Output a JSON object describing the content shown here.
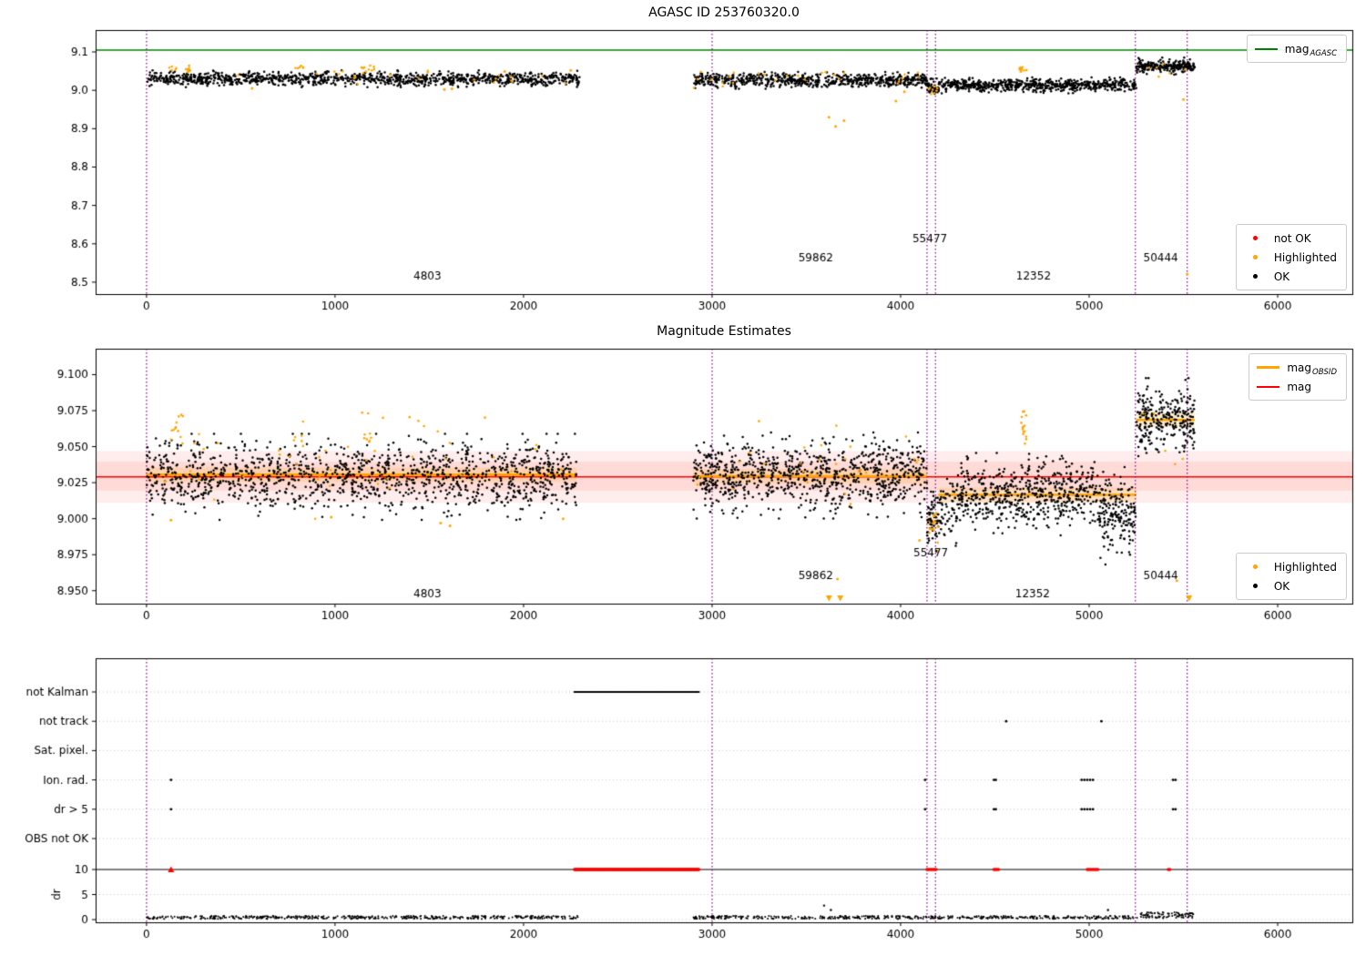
{
  "chart_data": {
    "type": "scatter",
    "colors": {
      "green": "#008000",
      "orange": "#ffa500",
      "red": "#ff0000",
      "black": "#000000",
      "purple": "#800080",
      "grid": "#c4c4c4"
    },
    "xlim": [
      -270,
      6396
    ],
    "xticks": [
      0,
      1000,
      2000,
      3000,
      4000,
      5000,
      6000
    ],
    "xtick_labels": [
      "0",
      "1000",
      "2000",
      "3000",
      "4000",
      "5000",
      "6000"
    ],
    "vlines": [
      0,
      3000,
      4140,
      4185,
      5245,
      5520
    ],
    "panel1": {
      "title": "AGASC ID 253760320.0",
      "ylim": [
        8.469,
        9.157
      ],
      "yticks": [
        9.1,
        9.0,
        8.9,
        8.8,
        8.7,
        8.6,
        8.5
      ],
      "ytick_labels": [
        "9.1",
        "9.0",
        "8.9",
        "8.8",
        "8.7",
        "8.6",
        "8.5"
      ],
      "agasc_line": {
        "y": 9.105,
        "color": "#008000"
      },
      "legend_line": {
        "main": "mag",
        "sub": "AGASC",
        "color": "#008000"
      },
      "legend_markers": [
        {
          "label": "not OK",
          "color": "#ff0000"
        },
        {
          "label": "Highlighted",
          "color": "#ffa500"
        },
        {
          "label": "OK",
          "color": "#000000"
        }
      ],
      "black_clusters": [
        {
          "x0": 0,
          "x1": 2300,
          "n": 1100,
          "y": 9.03,
          "sd": 0.0085
        },
        {
          "x0": 2900,
          "x1": 4140,
          "n": 680,
          "y": 9.026,
          "sd": 0.0085
        },
        {
          "x0": 4140,
          "x1": 4200,
          "n": 45,
          "y": 9.007,
          "sd": 0.009
        },
        {
          "x0": 4200,
          "x1": 5250,
          "n": 640,
          "y": 9.013,
          "sd": 0.008
        },
        {
          "x0": 5250,
          "x1": 5560,
          "n": 220,
          "y": 9.063,
          "sd": 0.0085
        }
      ],
      "orange_clusters": [
        {
          "x0": 120,
          "x1": 235,
          "n": 12,
          "y": 9.056,
          "sd": 0.004
        },
        {
          "x0": 780,
          "x1": 835,
          "n": 6,
          "y": 9.058,
          "sd": 0.004
        },
        {
          "x0": 1140,
          "x1": 1215,
          "n": 10,
          "y": 9.056,
          "sd": 0.005
        },
        {
          "x0": 0,
          "x1": 2300,
          "n": 22,
          "y": 9.036,
          "sd": 0.012
        },
        {
          "x0": 2900,
          "x1": 4140,
          "n": 26,
          "y": 9.033,
          "sd": 0.013
        },
        {
          "x0": 4630,
          "x1": 4668,
          "n": 10,
          "y": 9.053,
          "sd": 0.006
        },
        {
          "x0": 4150,
          "x1": 4200,
          "n": 8,
          "y": 8.997,
          "sd": 0.006
        },
        {
          "x0": 5250,
          "x1": 5560,
          "n": 6,
          "y": 9.056,
          "sd": 0.01
        }
      ],
      "orange_points": [
        [
          3620,
          8.93
        ],
        [
          3655,
          8.906
        ],
        [
          3700,
          8.921
        ],
        [
          3975,
          8.972
        ],
        [
          4020,
          8.996
        ],
        [
          5520,
          8.521
        ],
        [
          5500,
          8.976
        ],
        [
          2250,
          9.052
        ],
        [
          1900,
          9.049
        ],
        [
          560,
          9.005
        ],
        [
          1580,
          9.002
        ],
        [
          1620,
          9.004
        ]
      ],
      "annotations": [
        {
          "text": "4803",
          "x": 1490,
          "y": 8.507
        },
        {
          "text": "59862",
          "x": 3550,
          "y": 8.554
        },
        {
          "text": "55477",
          "x": 4155,
          "y": 8.604
        },
        {
          "text": "12352",
          "x": 4705,
          "y": 8.507
        },
        {
          "text": "50444",
          "x": 5380,
          "y": 8.554
        }
      ]
    },
    "panel2": {
      "title": "Magnitude Estimates",
      "ylim": [
        8.941,
        9.118
      ],
      "yticks": [
        9.1,
        9.075,
        9.05,
        9.025,
        9.0,
        8.975,
        8.95
      ],
      "ytick_labels": [
        "9.100",
        "9.075",
        "9.050",
        "9.025",
        "9.000",
        "8.975",
        "8.950"
      ],
      "mag_line": 9.029,
      "bands": [
        {
          "y0": 9.011,
          "y1": 9.047,
          "color": "rgba(255,0,0,0.07)"
        },
        {
          "y0": 9.0195,
          "y1": 9.0395,
          "color": "rgba(255,99,71,0.13)"
        }
      ],
      "obsid_segments": [
        {
          "x0": 0,
          "x1": 2280,
          "y": 9.0305
        },
        {
          "x0": 2900,
          "x1": 4140,
          "y": 9.0295
        },
        {
          "x0": 4140,
          "x1": 4200,
          "y": 8.998
        },
        {
          "x0": 4200,
          "x1": 5250,
          "y": 9.0165
        },
        {
          "x0": 5250,
          "x1": 5560,
          "y": 9.0685
        }
      ],
      "legend_lines": [
        {
          "main": "mag",
          "sub": "OBSID",
          "color": "#ffa500"
        },
        {
          "main": "mag",
          "sub": "",
          "color": "#ff0000"
        }
      ],
      "legend_markers": [
        {
          "label": "Highlighted",
          "color": "#ffa500"
        },
        {
          "label": "OK",
          "color": "#000000"
        }
      ],
      "black_clusters": [
        {
          "x0": 0,
          "x1": 2280,
          "n": 1300,
          "y": 9.029,
          "sd": 0.0115
        },
        {
          "x0": 2900,
          "x1": 4140,
          "n": 850,
          "y": 9.03,
          "sd": 0.0115
        },
        {
          "x0": 4140,
          "x1": 4200,
          "n": 60,
          "y": 8.998,
          "sd": 0.011
        },
        {
          "x0": 4200,
          "x1": 4300,
          "n": 60,
          "y": 9.006,
          "sd": 0.012
        },
        {
          "x0": 4300,
          "x1": 5050,
          "n": 560,
          "y": 9.017,
          "sd": 0.011
        },
        {
          "x0": 5050,
          "x1": 5250,
          "n": 180,
          "y": 9.002,
          "sd": 0.013
        },
        {
          "x0": 5250,
          "x1": 5560,
          "n": 270,
          "y": 9.069,
          "sd": 0.011
        }
      ],
      "orange_clusters": [
        {
          "x0": 120,
          "x1": 235,
          "n": 12,
          "y": 9.063,
          "sd": 0.006
        },
        {
          "x0": 780,
          "x1": 835,
          "n": 6,
          "y": 9.06,
          "sd": 0.005
        },
        {
          "x0": 1140,
          "x1": 1215,
          "n": 8,
          "y": 9.058,
          "sd": 0.006
        },
        {
          "x0": 0,
          "x1": 2280,
          "n": 45,
          "y": 9.038,
          "sd": 0.015
        },
        {
          "x0": 2900,
          "x1": 4140,
          "n": 30,
          "y": 9.037,
          "sd": 0.014
        },
        {
          "x0": 4150,
          "x1": 4200,
          "n": 12,
          "y": 8.991,
          "sd": 0.007
        },
        {
          "x0": 4640,
          "x1": 4668,
          "n": 15,
          "y": 9.062,
          "sd": 0.007
        },
        {
          "x0": 5250,
          "x1": 5560,
          "n": 5,
          "y": 9.058,
          "sd": 0.012
        }
      ],
      "orange_points": [
        [
          3665,
          8.958
        ],
        [
          4100,
          8.985
        ],
        [
          980,
          9.001
        ],
        [
          1560,
          8.997
        ],
        [
          1610,
          8.995
        ],
        [
          2210,
          9.0
        ],
        [
          5465,
          8.957
        ],
        [
          130,
          8.999
        ]
      ],
      "clipped_down": [
        3620,
        3680,
        5530
      ],
      "annotations": [
        {
          "text": "4803",
          "x": 1490,
          "y": 8.9455
        },
        {
          "text": "59862",
          "x": 3550,
          "y": 8.958
        },
        {
          "text": "55477",
          "x": 4160,
          "y": 8.974
        },
        {
          "text": "12352",
          "x": 4700,
          "y": 8.9455
        },
        {
          "text": "50444",
          "x": 5380,
          "y": 8.958
        }
      ]
    },
    "panel3": {
      "flag_labels": [
        "not Kalman",
        "not track",
        "Sat. pixel.",
        "Ion. rad.",
        "dr > 5",
        "OBS not OK"
      ],
      "flags": [
        {
          "dense": [
            [
              2270,
              2930
            ]
          ],
          "points": []
        },
        {
          "dense": [],
          "points": [
            4560,
            5065
          ]
        },
        {
          "dense": [],
          "points": []
        },
        {
          "dense": [],
          "points": [
            130,
            4130,
            4495,
            4505,
            4960,
            4975,
            4990,
            5005,
            5020,
            5445,
            5458
          ]
        },
        {
          "dense": [],
          "points": [
            130,
            4130,
            4495,
            4505,
            4960,
            4975,
            4990,
            5005,
            5020,
            5445,
            5458
          ]
        },
        {
          "dense": [],
          "points": []
        }
      ],
      "dr_axis_label": "dr",
      "dr_ticks": [
        10,
        5,
        0
      ],
      "dr_tick_labels": [
        "10",
        "5",
        "0"
      ],
      "dr_line": 10,
      "red_dense": [
        [
          2270,
          2930
        ]
      ],
      "red_points": [
        4140,
        4148,
        4156,
        4164,
        4172,
        4180,
        4188,
        4495,
        4503,
        4511,
        4519,
        4990,
        4998,
        5006,
        5014,
        5022,
        5030,
        5038,
        5046,
        5420,
        5428
      ],
      "red_triangles": [
        130
      ],
      "black_segments": [
        {
          "x0": 0,
          "x1": 2300,
          "n": 460,
          "base": 0.15,
          "spread": 0.6
        },
        {
          "x0": 2900,
          "x1": 5250,
          "n": 470,
          "base": 0.15,
          "spread": 0.6
        },
        {
          "x0": 5250,
          "x1": 5560,
          "n": 90,
          "base": 0.25,
          "spread": 1.2
        }
      ],
      "outliers": [
        [
          3594,
          2.8
        ],
        [
          3630,
          1.9
        ],
        [
          5100,
          1.9
        ]
      ]
    }
  }
}
